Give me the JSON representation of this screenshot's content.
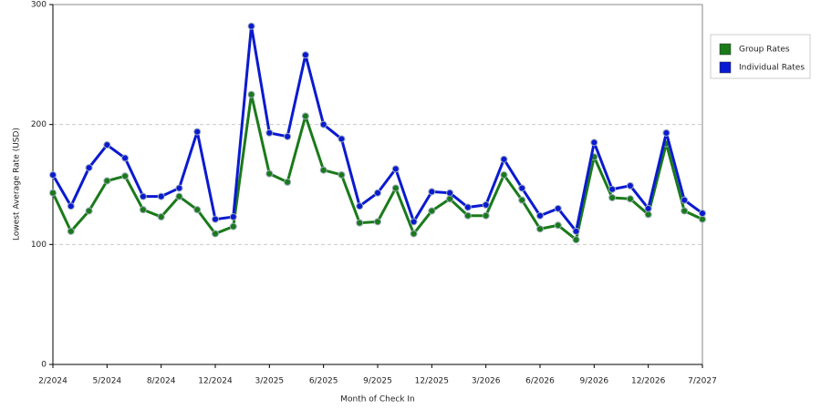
{
  "chart_data": {
    "type": "line",
    "x_label": "Month of Check In",
    "y_label": "Lowest Average Rate (USD)",
    "categories": [
      "2/2024",
      null,
      null,
      "5/2024",
      null,
      null,
      "8/2024",
      null,
      null,
      "12/2024",
      null,
      null,
      "3/2025",
      null,
      null,
      "6/2025",
      null,
      null,
      "9/2025",
      null,
      null,
      "12/2025",
      null,
      null,
      "3/2026",
      null,
      null,
      "6/2026",
      null,
      null,
      "9/2026",
      null,
      null,
      "12/2026",
      null,
      null,
      "7/2027"
    ],
    "series": [
      {
        "name": "Group Rates",
        "color": "#1a7a1a",
        "values": [
          143,
          111,
          128,
          153,
          157,
          129,
          123,
          140,
          129,
          109,
          115,
          225,
          159,
          152,
          207,
          162,
          158,
          118,
          119,
          147,
          109,
          128,
          138,
          124,
          124,
          158,
          137,
          113,
          116,
          104,
          173,
          139,
          138,
          125,
          184,
          128,
          121
        ]
      },
      {
        "name": "Individual Rates",
        "color": "#0a1ad0",
        "values": [
          158,
          132,
          164,
          183,
          172,
          140,
          140,
          147,
          194,
          121,
          123,
          282,
          193,
          190,
          258,
          200,
          188,
          132,
          143,
          163,
          119,
          144,
          143,
          131,
          133,
          171,
          147,
          124,
          130,
          111,
          185,
          146,
          149,
          130,
          193,
          137,
          126
        ]
      }
    ],
    "ylim": [
      0,
      300
    ],
    "yticks": [
      0,
      100,
      200,
      300
    ],
    "grid": true,
    "legend": "right"
  }
}
